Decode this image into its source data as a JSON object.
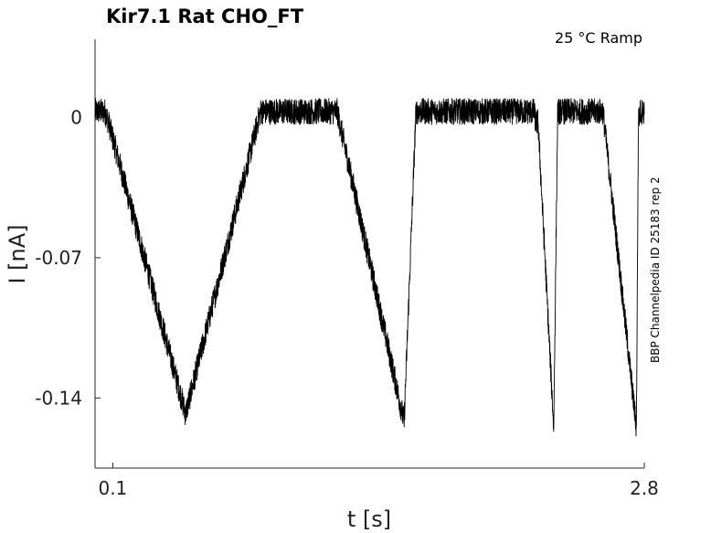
{
  "chart_data": {
    "type": "line",
    "title": "Kir7.1  Rat  CHO_FT",
    "annotation": "25 °C  Ramp",
    "side_text": "BBP Channelpedia ID 25183 rep 2",
    "xlabel": "t [s]",
    "ylabel": "I [nA]",
    "xlim": [
      0.01,
      2.8
    ],
    "ylim": [
      -0.175,
      0.039
    ],
    "x_ticks": [
      0.1,
      2.8
    ],
    "x_tick_labels": [
      "0.1",
      "2.8"
    ],
    "y_ticks": [
      0,
      -0.07,
      -0.14
    ],
    "y_tick_labels": [
      "0",
      "-0.07",
      "-0.14"
    ],
    "grid": false,
    "noise_amplitude": 0.0065,
    "series": [
      {
        "color": "#000000",
        "x": [
          0.01,
          0.06,
          0.08,
          0.47,
          0.85,
          1.24,
          1.58,
          1.64,
          2.08,
          2.24,
          2.25,
          2.26,
          2.34,
          2.36,
          2.59,
          2.76,
          2.77,
          2.78,
          2.8
        ],
        "y": [
          0.003,
          0.003,
          -0.003,
          -0.148,
          0.003,
          0.003,
          -0.152,
          0.003,
          0.003,
          0.003,
          -0.003,
          -0.002,
          -0.155,
          0.003,
          0.003,
          -0.155,
          -0.002,
          0.003,
          0.003
        ]
      }
    ]
  }
}
